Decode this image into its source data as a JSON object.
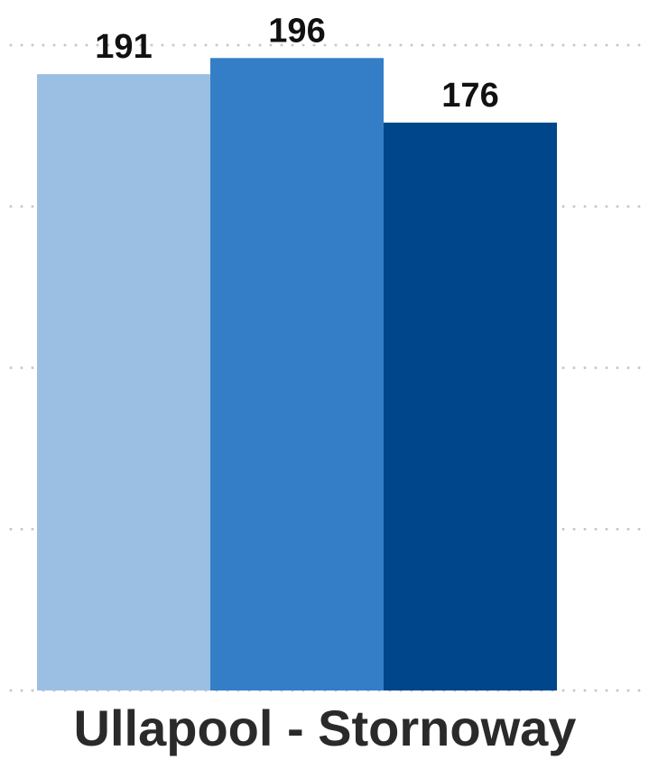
{
  "chart_data": {
    "type": "bar",
    "categories": [
      "Ullapool - Stornoway"
    ],
    "series": [
      {
        "values": [
          191
        ],
        "color": "#9bbfe3"
      },
      {
        "values": [
          196
        ],
        "color": "#347ec8"
      },
      {
        "values": [
          176
        ],
        "color": "#00468a"
      }
    ],
    "ylim": [
      0,
      200
    ],
    "grid": true,
    "gridline_values": [
      0,
      50,
      100,
      150,
      200
    ],
    "data_labels": true
  }
}
